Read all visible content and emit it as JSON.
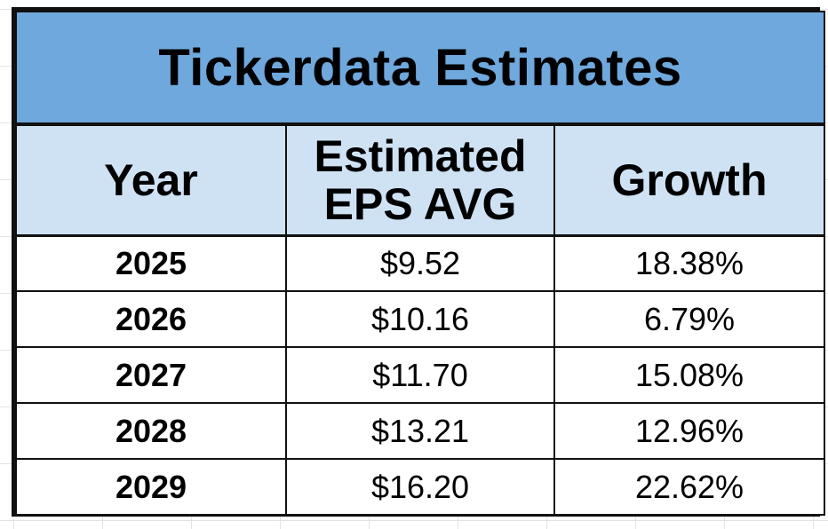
{
  "colors": {
    "title_bg": "#6fa8dc",
    "header_bg": "#cfe2f3",
    "cell_bg": "#ffffff",
    "border": "#111111",
    "text": "#000000"
  },
  "chart_data": {
    "type": "table",
    "title": "Tickerdata Estimates",
    "columns": [
      "Year",
      "Estimated EPS AVG",
      "Growth"
    ],
    "rows": [
      {
        "year": "2025",
        "eps": "$9.52",
        "growth": "18.38%"
      },
      {
        "year": "2026",
        "eps": "$10.16",
        "growth": "6.79%"
      },
      {
        "year": "2027",
        "eps": "$11.70",
        "growth": "15.08%"
      },
      {
        "year": "2028",
        "eps": "$13.21",
        "growth": "12.96%"
      },
      {
        "year": "2029",
        "eps": "$16.20",
        "growth": "22.62%"
      }
    ]
  }
}
